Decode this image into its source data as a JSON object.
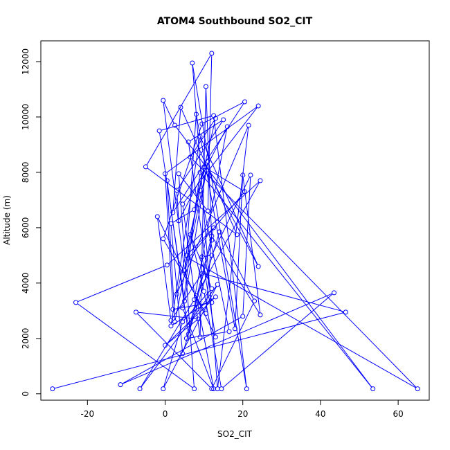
{
  "chart_data": {
    "type": "line",
    "title": "ATOM4 Southbound SO2_CIT",
    "xlabel": "SO2_CIT",
    "ylabel": "Altitude (m)",
    "xlim": [
      -32,
      68
    ],
    "ylim": [
      -230,
      12750
    ],
    "xticks": [
      -20,
      0,
      20,
      40,
      60
    ],
    "yticks": [
      0,
      2000,
      4000,
      6000,
      8000,
      10000,
      12000
    ],
    "series_color": "#0000ff",
    "series": [
      {
        "x": [
          -29,
          46.5,
          9.5,
          1.5,
          -2,
          13,
          9.5,
          12,
          22,
          20,
          -11.5,
          43.5,
          14.5,
          10,
          6.5,
          12,
          4.5,
          -0.5,
          13.5,
          -6.5,
          7.5,
          16,
          3.5,
          3,
          15,
          6,
          12,
          2,
          0,
          24,
          4.5,
          9,
          10.5,
          12,
          6,
          0.5,
          2.5,
          11,
          5,
          -1.5,
          12.5,
          21,
          7,
          13.5,
          21.5,
          3,
          9,
          16.5,
          5.5,
          12.5,
          5.5,
          8,
          18,
          20,
          24.5,
          12,
          10.5,
          -0.5,
          9.5,
          20.5,
          2,
          4,
          18.5,
          -5,
          12,
          11,
          3.5,
          7.5,
          -23,
          0.5,
          24.5,
          8,
          12.5,
          4.5,
          9,
          53.5,
          2.5,
          -0.5,
          5,
          10,
          20.5,
          6,
          65,
          6.5,
          13,
          7.5,
          1.5,
          4.5,
          14,
          23,
          12,
          -7.5,
          8.5,
          0,
          13,
          1.5,
          9,
          24,
          11.5
        ],
        "y": [
          180,
          2950,
          4350,
          2650,
          6400,
          2050,
          4950,
          5000,
          7900,
          2800,
          330,
          3650,
          180,
          3700,
          5750,
          3800,
          2600,
          180,
          3950,
          180,
          3400,
          9650,
          6250,
          7350,
          9900,
          9100,
          3300,
          3050,
          7950,
          10400,
          6850,
          2050,
          11100,
          5550,
          2150,
          7700,
          2600,
          8400,
          3350,
          9500,
          10050,
          180,
          11950,
          180,
          9700,
          3600,
          7350,
          2250,
          2000,
          6000,
          5000,
          10100,
          2350,
          7900,
          2850,
          5700,
          2900,
          5600,
          9750,
          10550,
          6550,
          10350,
          5750,
          8200,
          12300,
          6600,
          7950,
          180,
          3300,
          4650,
          7700,
          3550,
          180,
          3100,
          8000,
          180,
          9700,
          10600,
          4450,
          8200,
          7300,
          4900,
          180,
          8550,
          9950,
          6650,
          6150,
          1450,
          5850,
          3350,
          180,
          2950,
          2700,
          1750,
          3500,
          2450,
          9300,
          4600,
          7900
        ]
      }
    ]
  }
}
